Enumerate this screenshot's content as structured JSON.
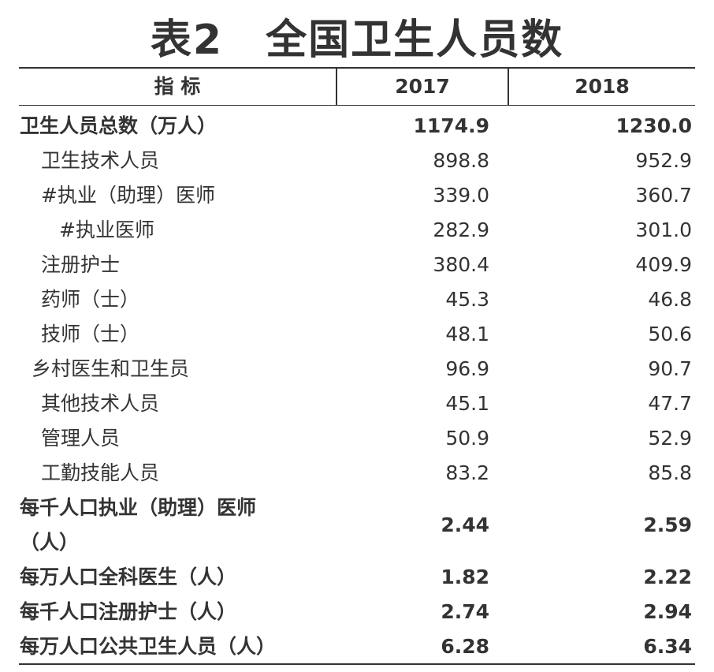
{
  "title": "表2　全国卫生人员数",
  "table": {
    "header": [
      "指 标",
      "2017",
      "2018"
    ],
    "rows": [
      [
        "卫生人员总数（万人）",
        "1174.9",
        "1230.0"
      ],
      [
        "卫生技术人员",
        "898.8",
        "952.9"
      ],
      [
        "#执业（助理）医师",
        "339.0",
        "360.7"
      ],
      [
        "#执业医师",
        "282.9",
        "301.0"
      ],
      [
        "注册护士",
        "380.4",
        "409.9"
      ],
      [
        "药师（士）",
        "45.3",
        "46.8"
      ],
      [
        "技师（士）",
        "48.1",
        "50.6"
      ],
      [
        "乡村医生和卫生员",
        "96.9",
        "90.7"
      ],
      [
        "其他技术人员",
        "45.1",
        "47.7"
      ],
      [
        "管理人员",
        "50.9",
        "52.9"
      ],
      [
        "工勤技能人员",
        "83.2",
        "85.8"
      ],
      [
        "每千人口执业（助理）医师（人）",
        "2.44",
        "2.59"
      ],
      [
        "每万人口全科医生（人）",
        "1.82",
        "2.22"
      ],
      [
        "每千人口注册护士（人）",
        "2.74",
        "2.94"
      ],
      [
        "每万人口公共卫生人员（人）",
        "6.28",
        "6.34"
      ]
    ]
  }
}
